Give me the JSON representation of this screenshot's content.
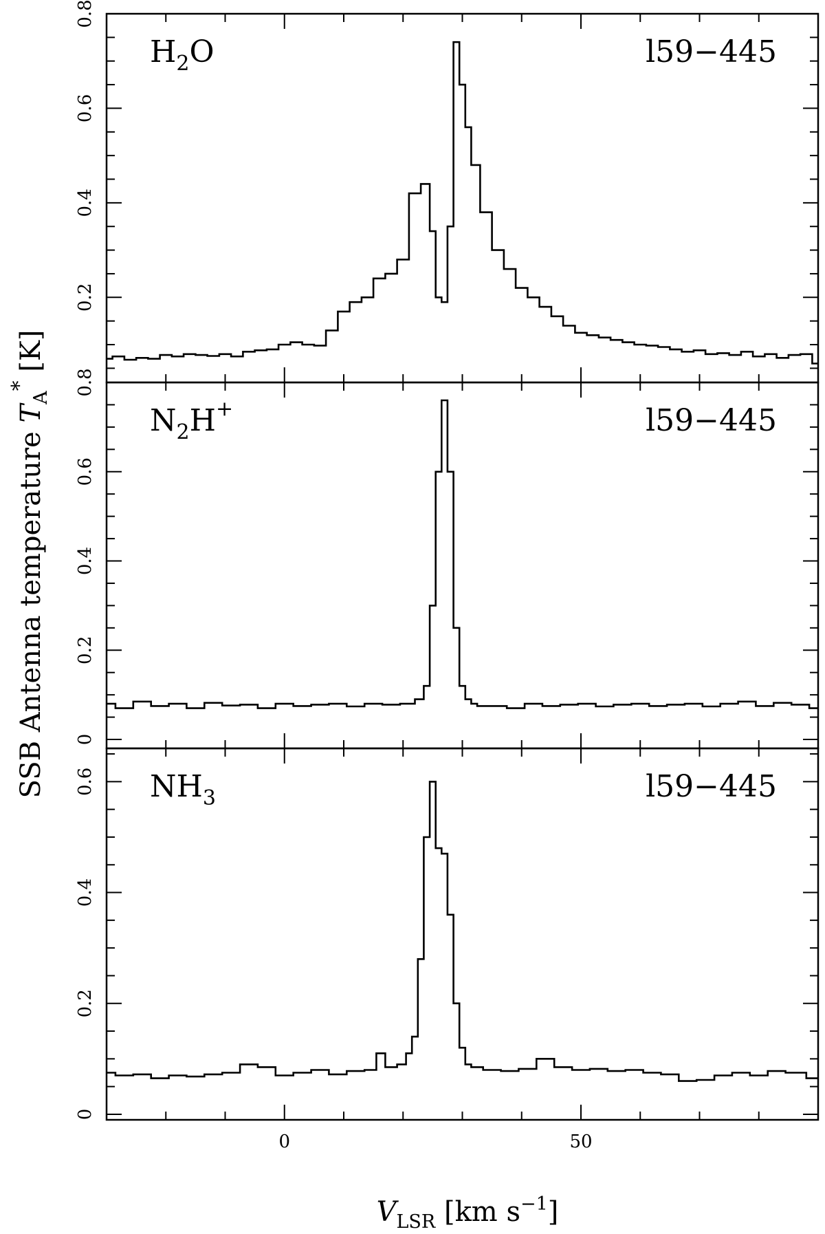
{
  "chart_data": {
    "type": "line",
    "style": "step",
    "x_axis": {
      "label_main": "V",
      "label_sub": "LSR",
      "label_unit_open": " [km s",
      "label_unit_exp": "−1",
      "label_unit_close": "]",
      "range": [
        -30,
        90
      ],
      "ticks": [
        0,
        50
      ],
      "tick_labels": [
        "0",
        "50"
      ],
      "minor_step": 10
    },
    "y_axis": {
      "label_main": "SSB Antenna temperature ",
      "label_symbol": "T",
      "label_sub": "A",
      "label_sup": "*",
      "label_unit": " [K]"
    },
    "panels": [
      {
        "molecule_main": "H",
        "molecule_sub": "2",
        "molecule_rest": "O",
        "molecule_sup": "",
        "source": "l59−445",
        "ylim": [
          0.02,
          0.8
        ],
        "y_ticks": [
          0.2,
          0.4,
          0.6,
          0.8
        ],
        "y_tick_labels": [
          "0.2",
          "0.4",
          "0.6",
          "0.8"
        ],
        "y_minor_step": 0.05,
        "x": [
          -30,
          -28,
          -26,
          -24,
          -22,
          -20,
          -18,
          -16,
          -14,
          -12,
          -10,
          -8,
          -6,
          -4,
          -2,
          0,
          2,
          4,
          6,
          8,
          10,
          12,
          14,
          16,
          18,
          20,
          22,
          24,
          25,
          26,
          27,
          28,
          29,
          30,
          31,
          32,
          34,
          36,
          38,
          40,
          42,
          44,
          46,
          48,
          50,
          52,
          54,
          56,
          58,
          60,
          62,
          64,
          66,
          68,
          70,
          72,
          74,
          76,
          78,
          80,
          82,
          84,
          86,
          88,
          90
        ],
        "values": [
          0.07,
          0.075,
          0.068,
          0.072,
          0.07,
          0.078,
          0.075,
          0.08,
          0.078,
          0.076,
          0.08,
          0.075,
          0.085,
          0.088,
          0.09,
          0.1,
          0.105,
          0.1,
          0.098,
          0.13,
          0.17,
          0.19,
          0.2,
          0.24,
          0.25,
          0.28,
          0.42,
          0.44,
          0.34,
          0.2,
          0.19,
          0.35,
          0.74,
          0.65,
          0.56,
          0.48,
          0.38,
          0.3,
          0.26,
          0.22,
          0.2,
          0.18,
          0.16,
          0.14,
          0.125,
          0.12,
          0.115,
          0.11,
          0.105,
          0.1,
          0.098,
          0.095,
          0.09,
          0.085,
          0.088,
          0.08,
          0.082,
          0.078,
          0.085,
          0.075,
          0.08,
          0.072,
          0.078,
          0.08,
          0.06
        ]
      },
      {
        "molecule_main": "N",
        "molecule_sub": "2",
        "molecule_rest": "H",
        "molecule_sup": "+",
        "source": "l59−445",
        "ylim": [
          -0.02,
          0.8
        ],
        "y_ticks": [
          0,
          0.2,
          0.4,
          0.6,
          0.8
        ],
        "y_tick_labels": [
          "0",
          "0.2",
          "0.4",
          "0.6",
          "0.8"
        ],
        "y_minor_step": 0.05,
        "x": [
          -30,
          -27,
          -24,
          -21,
          -18,
          -15,
          -12,
          -9,
          -6,
          -3,
          0,
          3,
          6,
          9,
          12,
          15,
          18,
          21,
          23,
          24,
          25,
          26,
          27,
          28,
          29,
          30,
          31,
          32,
          33,
          36,
          39,
          42,
          45,
          48,
          51,
          54,
          57,
          60,
          63,
          66,
          69,
          72,
          75,
          78,
          81,
          84,
          87,
          90
        ],
        "values": [
          0.08,
          0.07,
          0.085,
          0.075,
          0.08,
          0.07,
          0.082,
          0.076,
          0.078,
          0.07,
          0.08,
          0.075,
          0.078,
          0.08,
          0.074,
          0.08,
          0.078,
          0.08,
          0.09,
          0.12,
          0.3,
          0.6,
          0.76,
          0.6,
          0.25,
          0.12,
          0.09,
          0.08,
          0.075,
          0.075,
          0.07,
          0.08,
          0.075,
          0.078,
          0.08,
          0.074,
          0.078,
          0.08,
          0.075,
          0.078,
          0.08,
          0.074,
          0.08,
          0.085,
          0.075,
          0.082,
          0.078,
          0.07
        ]
      },
      {
        "molecule_main": "NH",
        "molecule_sub": "3",
        "molecule_rest": "",
        "molecule_sup": "",
        "source": "l59−445",
        "ylim": [
          -0.01,
          0.66
        ],
        "y_ticks": [
          0,
          0.2,
          0.4,
          0.6
        ],
        "y_tick_labels": [
          "0",
          "0.2",
          "0.4",
          "0.6"
        ],
        "y_minor_step": 0.05,
        "x": [
          -30,
          -27,
          -24,
          -21,
          -18,
          -15,
          -12,
          -9,
          -6,
          -3,
          0,
          3,
          6,
          9,
          12,
          15,
          16,
          18,
          20,
          21,
          22,
          23,
          24,
          25,
          26,
          27,
          28,
          29,
          30,
          31,
          32,
          35,
          38,
          41,
          44,
          47,
          50,
          53,
          56,
          59,
          62,
          65,
          68,
          71,
          74,
          77,
          80,
          83,
          86,
          90
        ],
        "values": [
          0.075,
          0.07,
          0.072,
          0.065,
          0.07,
          0.068,
          0.072,
          0.075,
          0.09,
          0.085,
          0.07,
          0.075,
          0.08,
          0.072,
          0.078,
          0.08,
          0.11,
          0.085,
          0.09,
          0.11,
          0.14,
          0.28,
          0.5,
          0.6,
          0.48,
          0.47,
          0.36,
          0.2,
          0.12,
          0.09,
          0.085,
          0.08,
          0.078,
          0.082,
          0.1,
          0.085,
          0.08,
          0.082,
          0.078,
          0.08,
          0.075,
          0.072,
          0.06,
          0.062,
          0.07,
          0.075,
          0.07,
          0.078,
          0.075,
          0.065
        ]
      }
    ]
  }
}
